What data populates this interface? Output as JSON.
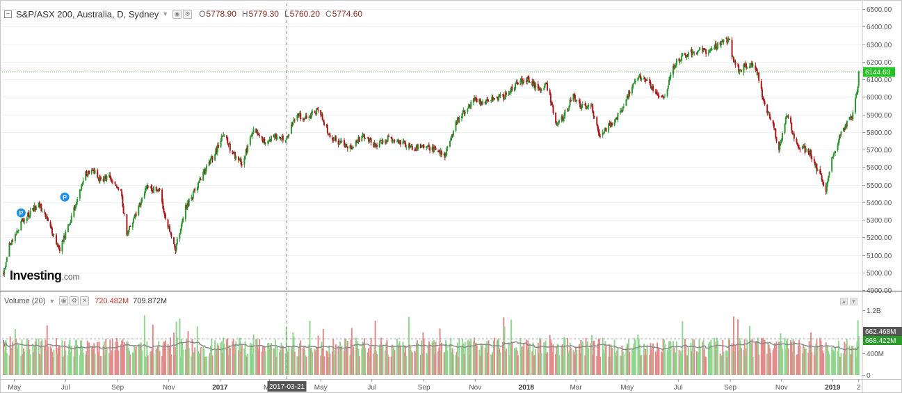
{
  "header": {
    "title": "S&P/ASX 200, Australia, D, Sydney",
    "ohlc": [
      {
        "key": "O",
        "value": "5778.90"
      },
      {
        "key": "H",
        "value": "5779.30"
      },
      {
        "key": "L",
        "value": "5760.20"
      },
      {
        "key": "C",
        "value": "5774.60"
      }
    ]
  },
  "volume_header": {
    "label": "Volume (20)",
    "value1": "720.482M",
    "value2": "709.872M"
  },
  "logo": {
    "main": "Investing",
    "suffix": ".com"
  },
  "colors": {
    "up": "#2a9330",
    "down": "#a8171b",
    "vol_up": "#8fd68f",
    "vol_down": "#e38a8a",
    "ma": "#8a8a8a",
    "last_price_line": "#22aa22",
    "last_price_label_bg": "#22c322",
    "marker": "#1e90e6"
  },
  "chart_data": [
    {
      "type": "candlestick",
      "series_name": "S&P/ASX 200",
      "ylim": [
        4900,
        6500
      ],
      "y_ticks": [
        "4900.00",
        "5000.00",
        "5100.00",
        "5200.00",
        "5300.00",
        "5400.00",
        "5500.00",
        "5600.00",
        "5700.00",
        "5800.00",
        "5900.00",
        "6000.00",
        "6100.00",
        "6200.00",
        "6300.00",
        "6400.00",
        "6500.00"
      ],
      "x_ticks": [
        "May",
        "Jul",
        "Sep",
        "Nov",
        "2017",
        "Mar",
        "May",
        "Jul",
        "Sep",
        "Nov",
        "2018",
        "Mar",
        "May",
        "Jul",
        "Sep",
        "Nov",
        "2019",
        "2"
      ],
      "x_start": "2016-04-18",
      "x_end": "2019-02-02",
      "close_anchors": [
        {
          "date": "2016-04-18",
          "close": 4990
        },
        {
          "date": "2016-04-25",
          "close": 5160
        },
        {
          "date": "2016-05-10",
          "close": 5290
        },
        {
          "date": "2016-05-30",
          "close": 5390
        },
        {
          "date": "2016-06-10",
          "close": 5300
        },
        {
          "date": "2016-06-24",
          "close": 5130
        },
        {
          "date": "2016-07-01",
          "close": 5220
        },
        {
          "date": "2016-07-25",
          "close": 5560
        },
        {
          "date": "2016-08-02",
          "close": 5590
        },
        {
          "date": "2016-08-10",
          "close": 5530
        },
        {
          "date": "2016-08-22",
          "close": 5540
        },
        {
          "date": "2016-09-05",
          "close": 5450
        },
        {
          "date": "2016-09-12",
          "close": 5220
        },
        {
          "date": "2016-09-20",
          "close": 5300
        },
        {
          "date": "2016-10-05",
          "close": 5480
        },
        {
          "date": "2016-10-20",
          "close": 5470
        },
        {
          "date": "2016-11-01",
          "close": 5250
        },
        {
          "date": "2016-11-09",
          "close": 5140
        },
        {
          "date": "2016-11-20",
          "close": 5360
        },
        {
          "date": "2016-12-10",
          "close": 5540
        },
        {
          "date": "2016-12-28",
          "close": 5700
        },
        {
          "date": "2017-01-05",
          "close": 5790
        },
        {
          "date": "2017-01-16",
          "close": 5680
        },
        {
          "date": "2017-01-27",
          "close": 5620
        },
        {
          "date": "2017-02-10",
          "close": 5810
        },
        {
          "date": "2017-02-24",
          "close": 5740
        },
        {
          "date": "2017-03-10",
          "close": 5780
        },
        {
          "date": "2017-03-21",
          "close": 5760
        },
        {
          "date": "2017-04-03",
          "close": 5900
        },
        {
          "date": "2017-04-12",
          "close": 5880
        },
        {
          "date": "2017-04-28",
          "close": 5930
        },
        {
          "date": "2017-05-12",
          "close": 5780
        },
        {
          "date": "2017-05-22",
          "close": 5740
        },
        {
          "date": "2017-06-05",
          "close": 5710
        },
        {
          "date": "2017-06-20",
          "close": 5780
        },
        {
          "date": "2017-07-05",
          "close": 5720
        },
        {
          "date": "2017-07-20",
          "close": 5760
        },
        {
          "date": "2017-08-05",
          "close": 5740
        },
        {
          "date": "2017-08-20",
          "close": 5710
        },
        {
          "date": "2017-09-05",
          "close": 5720
        },
        {
          "date": "2017-09-18",
          "close": 5680
        },
        {
          "date": "2017-09-26",
          "close": 5670
        },
        {
          "date": "2017-10-10",
          "close": 5860
        },
        {
          "date": "2017-10-20",
          "close": 5920
        },
        {
          "date": "2017-11-01",
          "close": 5990
        },
        {
          "date": "2017-11-10",
          "close": 5960
        },
        {
          "date": "2017-11-24",
          "close": 6000
        },
        {
          "date": "2017-12-05",
          "close": 6000
        },
        {
          "date": "2017-12-20",
          "close": 6080
        },
        {
          "date": "2018-01-05",
          "close": 6100
        },
        {
          "date": "2018-01-15",
          "close": 6040
        },
        {
          "date": "2018-01-25",
          "close": 6070
        },
        {
          "date": "2018-02-06",
          "close": 5850
        },
        {
          "date": "2018-02-14",
          "close": 5890
        },
        {
          "date": "2018-02-26",
          "close": 6010
        },
        {
          "date": "2018-03-08",
          "close": 5940
        },
        {
          "date": "2018-03-20",
          "close": 5940
        },
        {
          "date": "2018-03-29",
          "close": 5780
        },
        {
          "date": "2018-04-05",
          "close": 5810
        },
        {
          "date": "2018-04-20",
          "close": 5890
        },
        {
          "date": "2018-05-05",
          "close": 6040
        },
        {
          "date": "2018-05-15",
          "close": 6120
        },
        {
          "date": "2018-05-25",
          "close": 6100
        },
        {
          "date": "2018-06-05",
          "close": 6010
        },
        {
          "date": "2018-06-15",
          "close": 6000
        },
        {
          "date": "2018-06-25",
          "close": 6180
        },
        {
          "date": "2018-07-05",
          "close": 6230
        },
        {
          "date": "2018-07-20",
          "close": 6260
        },
        {
          "date": "2018-08-05",
          "close": 6260
        },
        {
          "date": "2018-08-20",
          "close": 6300
        },
        {
          "date": "2018-08-30",
          "close": 6330
        },
        {
          "date": "2018-09-05",
          "close": 6200
        },
        {
          "date": "2018-09-12",
          "close": 6150
        },
        {
          "date": "2018-09-25",
          "close": 6190
        },
        {
          "date": "2018-10-02",
          "close": 6160
        },
        {
          "date": "2018-10-12",
          "close": 5950
        },
        {
          "date": "2018-10-22",
          "close": 5840
        },
        {
          "date": "2018-10-29",
          "close": 5690
        },
        {
          "date": "2018-11-08",
          "close": 5910
        },
        {
          "date": "2018-11-16",
          "close": 5760
        },
        {
          "date": "2018-11-22",
          "close": 5710
        },
        {
          "date": "2018-11-28",
          "close": 5700
        },
        {
          "date": "2018-12-05",
          "close": 5680
        },
        {
          "date": "2018-12-12",
          "close": 5600
        },
        {
          "date": "2018-12-19",
          "close": 5530
        },
        {
          "date": "2018-12-24",
          "close": 5470
        },
        {
          "date": "2018-12-31",
          "close": 5650
        },
        {
          "date": "2019-01-10",
          "close": 5780
        },
        {
          "date": "2019-01-18",
          "close": 5860
        },
        {
          "date": "2019-01-24",
          "close": 5880
        },
        {
          "date": "2019-01-31",
          "close": 6060
        },
        {
          "date": "2019-02-02",
          "close": 6144.6
        }
      ],
      "last_price": "6144.60",
      "markers": [
        {
          "date": "2016-05-09",
          "label": "P",
          "price": 5300
        },
        {
          "date": "2016-06-30",
          "label": "P",
          "price": 5390
        }
      ],
      "crosshair": {
        "date": "2017-03-21",
        "label": "2017-03-21",
        "text_color": "#ffffff"
      }
    },
    {
      "type": "bar",
      "series_name": "Volume (20)",
      "ylim": [
        0,
        1400000000
      ],
      "y_ticks": [
        "0",
        "400M",
        "1.2B"
      ],
      "average_labels": [
        "662.468M",
        "668.422M"
      ],
      "average_line": "668.422M",
      "typical_volume": 600000000,
      "ma_period": 20
    }
  ]
}
